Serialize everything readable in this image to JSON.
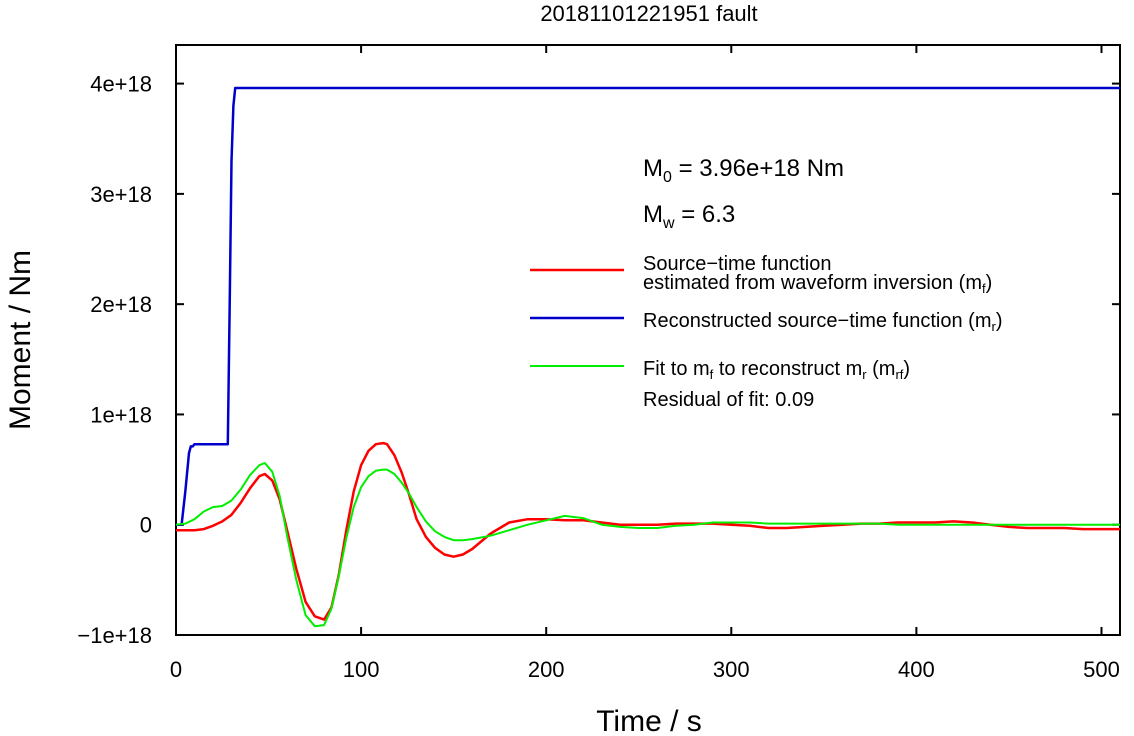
{
  "chart_data": {
    "type": "line",
    "title": "20181101221951 fault",
    "xlabel": "Time / s",
    "ylabel": "Moment / Nm",
    "xlim": [
      0,
      510
    ],
    "ylim": [
      -1e+18,
      4.35e+18
    ],
    "x_ticks": [
      0,
      100,
      200,
      300,
      400,
      500
    ],
    "x_tick_labels": [
      "0",
      "100",
      "200",
      "300",
      "400",
      "500"
    ],
    "y_ticks": [
      -1e+18,
      0,
      1e+18,
      2e+18,
      3e+18,
      4e+18
    ],
    "y_tick_labels": [
      "−1e+18",
      "0",
      "1e+18",
      "2e+18",
      "3e+18",
      "4e+18"
    ],
    "grid": false,
    "legend_position": "right",
    "annotations": {
      "m0_label": "M",
      "m0_sub": "0",
      "m0_value": " = 3.96e+18 Nm",
      "mw_label": "M",
      "mw_sub": "w",
      "mw_value": " = 6.3",
      "residual": "Residual of fit: 0.09"
    },
    "legend": [
      {
        "lines": [
          "Source−time function",
          "estimated from waveform inversion (m",
          "f",
          ")"
        ],
        "color": "#ff0000"
      },
      {
        "lines": [
          "Reconstructed source−time function (m",
          "r",
          ")"
        ],
        "color": "#0000cc"
      },
      {
        "lines": [
          "Fit to m",
          "f",
          " to reconstruct m",
          "r",
          " (m",
          "rf",
          ")"
        ],
        "color": "#00ee00"
      }
    ],
    "series": [
      {
        "color": "#ff0000",
        "x": [
          0,
          5,
          10,
          15,
          20,
          25,
          30,
          35,
          40,
          45,
          48,
          52,
          56,
          60,
          65,
          70,
          75,
          80,
          84,
          88,
          92,
          96,
          100,
          104,
          108,
          112,
          114,
          118,
          122,
          126,
          130,
          135,
          140,
          145,
          150,
          155,
          160,
          170,
          180,
          190,
          200,
          210,
          220,
          230,
          240,
          250,
          260,
          270,
          280,
          290,
          300,
          310,
          320,
          330,
          340,
          350,
          360,
          370,
          380,
          390,
          400,
          410,
          420,
          430,
          440,
          450,
          460,
          470,
          480,
          490,
          500,
          510
        ],
        "y": [
          -5e+16,
          -5e+16,
          -5e+16,
          -4e+16,
          -1e+16,
          3e+16,
          9e+16,
          2e+17,
          3.3e+17,
          4.4e+17,
          4.6e+17,
          4e+17,
          2.3e+17,
          -5e+16,
          -4e+17,
          -7e+17,
          -8.3e+17,
          -8.6e+17,
          -7.5e+17,
          -4.5e+17,
          -5e+16,
          3e+17,
          5.4e+17,
          6.7e+17,
          7.3e+17,
          7.4e+17,
          7.3e+17,
          6.3e+17,
          4.7e+17,
          2.7e+17,
          5e+16,
          -1.1e+17,
          -2.1e+17,
          -2.7e+17,
          -2.9e+17,
          -2.7e+17,
          -2.2e+17,
          -8e+16,
          2e+16,
          5e+16,
          5e+16,
          4e+16,
          4e+16,
          2e+16,
          0,
          0,
          0,
          1e+16,
          1e+16,
          1e+16,
          0,
          -1e+16,
          -3e+16,
          -3e+16,
          -2e+16,
          -1e+16,
          0,
          1e+16,
          1e+16,
          2e+16,
          2e+16,
          2e+16,
          3e+16,
          2e+16,
          0,
          -2e+16,
          -3e+16,
          -3e+16,
          -3e+16,
          -4e+16,
          -4e+16,
          -4e+16
        ]
      },
      {
        "color": "#0000cc",
        "x": [
          0,
          3,
          5,
          7,
          8,
          9,
          10,
          20,
          28,
          29,
          30,
          31,
          32,
          33,
          100,
          200,
          300,
          400,
          510
        ],
        "y": [
          0,
          0,
          3e+17,
          6.5e+17,
          7.1e+17,
          7.1e+17,
          7.3e+17,
          7.3e+17,
          7.3e+17,
          2e+18,
          3.3e+18,
          3.8e+18,
          3.96e+18,
          3.96e+18,
          3.96e+18,
          3.96e+18,
          3.96e+18,
          3.96e+18,
          3.96e+18
        ]
      },
      {
        "color": "#00ee00",
        "x": [
          0,
          5,
          10,
          15,
          20,
          25,
          30,
          35,
          40,
          45,
          48,
          52,
          56,
          60,
          65,
          70,
          75,
          80,
          84,
          88,
          92,
          96,
          100,
          104,
          108,
          112,
          114,
          118,
          122,
          126,
          130,
          135,
          140,
          145,
          150,
          155,
          160,
          170,
          180,
          190,
          200,
          210,
          220,
          230,
          240,
          250,
          260,
          270,
          280,
          290,
          300,
          310,
          320,
          330,
          340,
          350,
          360,
          370,
          380,
          390,
          400,
          410,
          420,
          430,
          440,
          450,
          460,
          470,
          480,
          490,
          500,
          510
        ],
        "y": [
          0,
          1e+16,
          5e+16,
          1.2e+17,
          1.6e+17,
          1.7e+17,
          2.2e+17,
          3.2e+17,
          4.5e+17,
          5.4e+17,
          5.6e+17,
          4.8e+17,
          2.6e+17,
          -1e+17,
          -5e+17,
          -8.2e+17,
          -9.2e+17,
          -9.1e+17,
          -7.6e+17,
          -4.6e+17,
          -1.2e+17,
          1.6e+17,
          3.4e+17,
          4.4e+17,
          4.9e+17,
          5e+17,
          5e+17,
          4.6e+17,
          3.8e+17,
          2.8e+17,
          1.6e+17,
          3e+16,
          -6e+16,
          -1.1e+17,
          -1.4e+17,
          -1.4e+17,
          -1.3e+17,
          -1e+17,
          -5e+16,
          0,
          4e+16,
          8e+16,
          6e+16,
          0,
          -2e+16,
          -3e+16,
          -3e+16,
          -1e+16,
          0,
          2e+16,
          2e+16,
          2e+16,
          1e+16,
          1e+16,
          1e+16,
          1e+16,
          1e+16,
          1e+16,
          1e+16,
          0,
          0,
          0,
          0,
          0,
          0,
          0,
          0,
          0,
          0,
          0,
          0,
          0
        ]
      }
    ]
  }
}
